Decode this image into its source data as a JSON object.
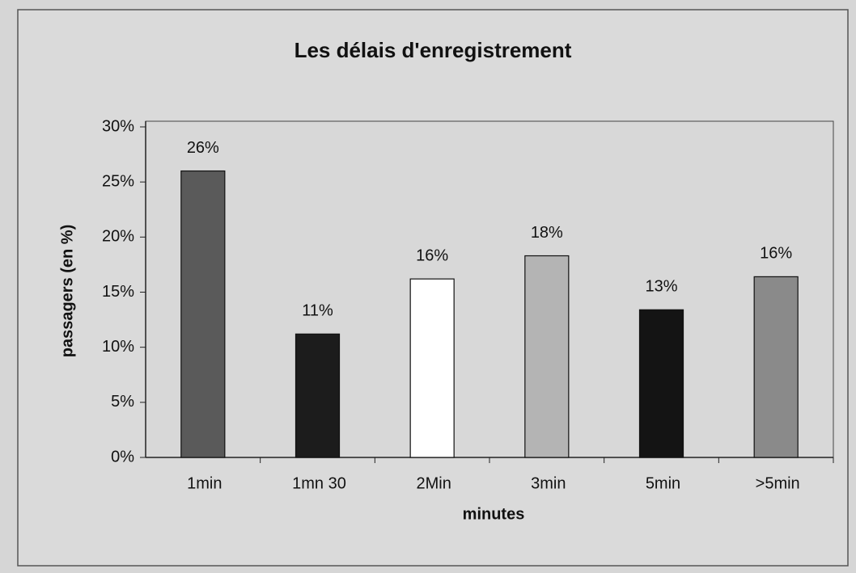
{
  "chart_data": {
    "type": "bar",
    "title": "Les délais d'enregistrement",
    "x_label": "minutes",
    "y_label": "passagers (en %)",
    "categories": [
      "1min",
      "1mn 30",
      "2Min",
      "3min",
      "5min",
      ">5min"
    ],
    "values": [
      26,
      11.2,
      16.2,
      18.3,
      13.4,
      16.4
    ],
    "value_labels": [
      "26%",
      "11%",
      "16%",
      "18%",
      "13%",
      "16%"
    ],
    "colors": [
      "#5a5a5a",
      "#1c1c1c",
      "#ffffff",
      "#b4b4b4",
      "#141414",
      "#8a8a8a"
    ],
    "ylim": [
      0,
      30
    ],
    "yticks": [
      {
        "value": 0,
        "label": "0%"
      },
      {
        "value": 5,
        "label": "5%"
      },
      {
        "value": 10,
        "label": "10%"
      },
      {
        "value": 15,
        "label": "15%"
      },
      {
        "value": 20,
        "label": "20%"
      },
      {
        "value": 25,
        "label": "25%"
      },
      {
        "value": 30,
        "label": "30%"
      }
    ],
    "grid": false
  }
}
